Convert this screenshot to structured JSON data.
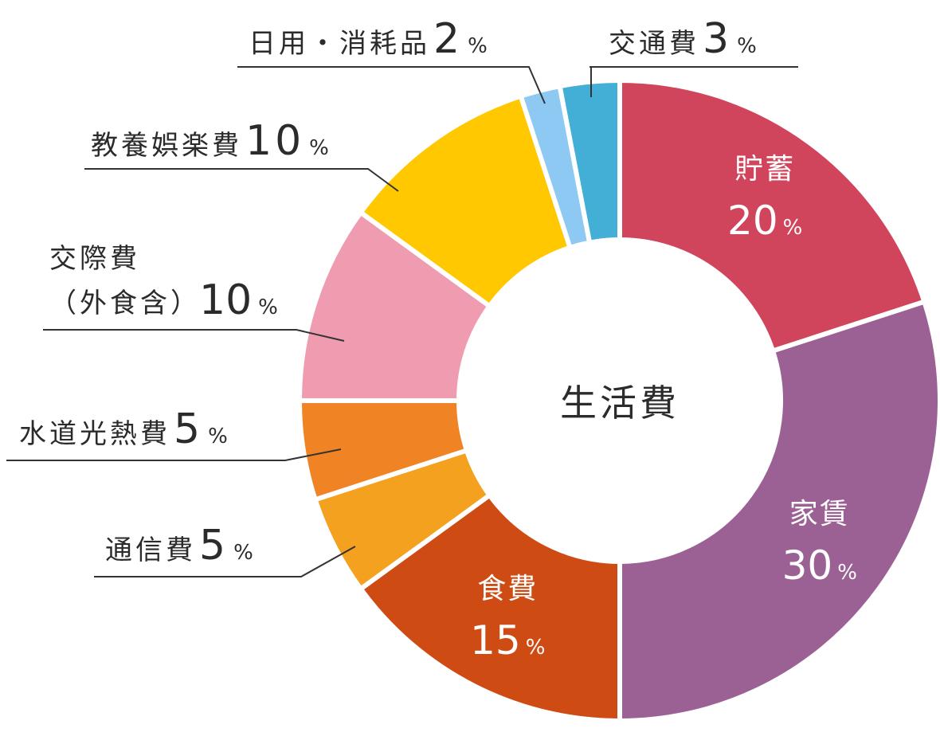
{
  "chart_data": {
    "type": "pie",
    "variant": "donut",
    "center_label": "生活費",
    "percent_symbol": "%",
    "slices": [
      {
        "name": "貯蓄",
        "value": 20,
        "color": "#D0445C",
        "label_position": "inside"
      },
      {
        "name": "家賃",
        "value": 30,
        "color": "#9C6194",
        "label_position": "inside"
      },
      {
        "name": "食費",
        "value": 15,
        "color": "#CE4B14",
        "label_position": "inside"
      },
      {
        "name": "通信費",
        "value": 5,
        "color": "#F3A11E",
        "label_position": "outside"
      },
      {
        "name": "水道光熱費",
        "value": 5,
        "color": "#F08424",
        "label_position": "outside"
      },
      {
        "name": "交際費（外食含）",
        "name_lines": [
          "交際費",
          "（外食含）"
        ],
        "value": 10,
        "color": "#F09CB0",
        "label_position": "outside"
      },
      {
        "name": "教養娯楽費",
        "value": 10,
        "color": "#FFC800",
        "label_position": "outside"
      },
      {
        "name": "日用・消耗品",
        "value": 2,
        "color": "#8EC9F3",
        "label_position": "outside"
      },
      {
        "name": "交通費",
        "value": 3,
        "color": "#43AED6",
        "label_position": "outside"
      }
    ]
  }
}
